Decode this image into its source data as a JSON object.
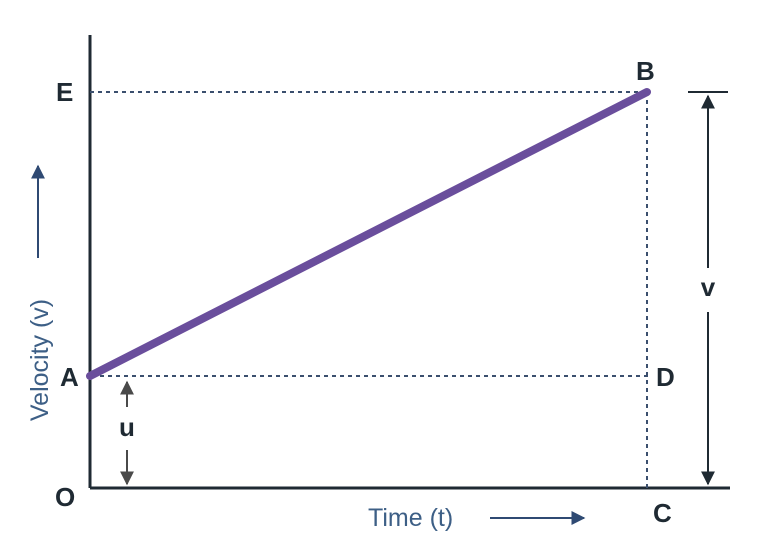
{
  "points": {
    "A": "A",
    "B": "B",
    "C": "C",
    "D": "D",
    "E": "E",
    "O": "O"
  },
  "axes": {
    "x_title": "Time (t)",
    "y_title": "Velocity (v)"
  },
  "quantities": {
    "initial_velocity": "u",
    "final_velocity": "v"
  },
  "colors": {
    "line": "#6a4e9c",
    "axis": "#1f2a33",
    "guide": "#3b4f6e",
    "arrow": "#4a4a4a",
    "axis_title": "#3d5f86"
  }
}
